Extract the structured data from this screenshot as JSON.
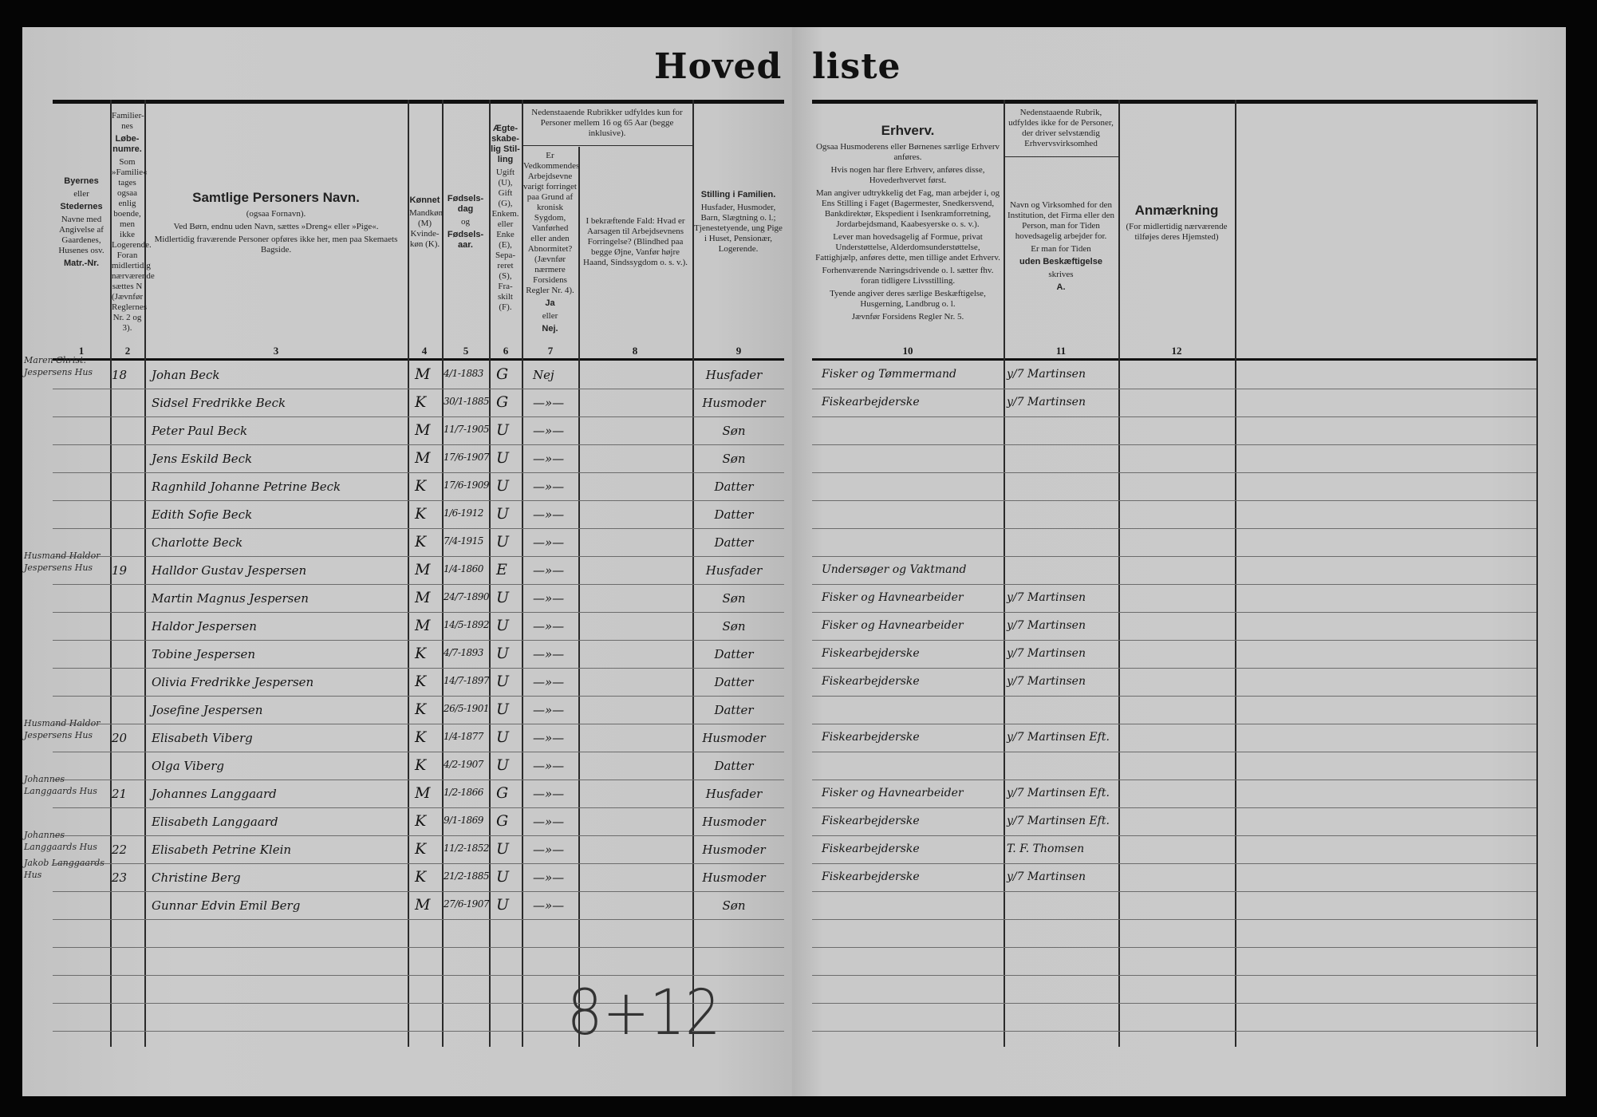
{
  "title": {
    "part1": "Hoved",
    "part2": "liste"
  },
  "headers": {
    "c1": [
      "Byernes",
      "eller",
      "Stedernes",
      "Navne med Angivelse af Gaardenes, Husenes osv.",
      "Matr.-Nr."
    ],
    "c2": [
      "Familier-nes",
      "Løbe-numre.",
      "Som »Familie« tages ogsaa enlig boende, men ikke Logerende. Foran midlertidig nærværende sættes N (Jævnfør Reglernes Nr. 2 og 3)."
    ],
    "c3": [
      "Samtlige Personers Navn.",
      "(ogsaa Fornavn).",
      "Ved Børn, endnu uden Navn, sættes »Dreng« eller »Pige«.",
      "Midlertidig fraværende Personer opføres ikke her, men paa Skemaets Bagside."
    ],
    "c4": [
      "Kønnet",
      "Mandkøn (M) Kvinde-køn (K)."
    ],
    "c5": [
      "Fødsels-dag",
      "og",
      "Fødsels-aar."
    ],
    "c6": [
      "Ægte-skabe-lig Stil-ling",
      "Ugift (U), Gift (G), Enkem. eller Enke (E), Sepa-reret (S), Fra-skilt (F)."
    ],
    "group78": "Nedenstaaende Rubrikker udfyldes kun for Personer mellem 16 og 65 Aar (begge inklusive).",
    "c7": [
      "Er Vedkommendes Arbejdsevne varigt forringet paa Grund af kronisk Sygdom, Vanførhed eller anden Abnormitet? (Jævnfør nærmere Forsidens Regler Nr. 4).",
      "Ja",
      "eller",
      "Nej."
    ],
    "c8": [
      "I bekræftende Fald: Hvad er Aarsagen til Arbejdsevnens Forringelse? (Blindhed paa begge Øjne, Vanfør højre Haand, Sindssygdom o. s. v.)."
    ],
    "c9": [
      "Stilling i Familien.",
      "Husfader, Husmoder, Barn, Slægtning o. l.; Tjenestetyende, ung Pige i Huset, Pensionær, Logerende."
    ],
    "c10": [
      "Erhverv.",
      "Ogsaa Husmoderens eller Børnenes særlige Erhverv anføres.",
      "Hvis nogen har flere Erhverv, anføres disse, Hovederhvervet først.",
      "Man angiver udtrykkelig det Fag, man arbejder i, og Ens Stilling i Faget (Bagermester, Snedkersvend, Bankdirektør, Ekspedient i Isenkramforretning, Jordarbejdsmand, Kaabesyerske o. s. v.).",
      "Lever man hovedsagelig af Formue, privat Understøttelse, Alderdomsunderstøttelse, Fattighjælp, anføres dette, men tillige andet Erhverv.",
      "Forhenværende Næringsdrivende o. l. sætter fhv. foran tidligere Livsstilling.",
      "Tyende angiver deres særlige Beskæftigelse, Husgerning, Landbrug o. l.",
      "Jævnfør Forsidens Regler Nr. 5."
    ],
    "group11": "Nedenstaaende Rubrik, udfyldes ikke for de Personer, der driver selvstændig Erhvervsvirksomhed",
    "c11": [
      "Navn og Virksomhed for den Institution, det Firma eller den Person, man for Tiden hovedsagelig arbejder for.",
      "Er man for Tiden",
      "uden Beskæftigelse",
      "skrives",
      "A."
    ],
    "c12": [
      "Anmærkning",
      "(For midlertidig nærværende tilføjes deres Hjemsted)"
    ]
  },
  "column_numbers": [
    "1",
    "2",
    "3",
    "4",
    "5",
    "6",
    "7",
    "8",
    "9",
    "10",
    "11",
    "12"
  ],
  "margin_notes": [
    {
      "row": 0,
      "text": "Maren Christ. Jespersens Hus"
    },
    {
      "row": 7,
      "text": "Husmand Haldor Jespersens Hus"
    },
    {
      "row": 13,
      "text": "Husmand Haldor Jespersens Hus"
    },
    {
      "row": 15,
      "text": "Johannes Langgaards Hus"
    },
    {
      "row": 17,
      "text": "Johannes Langgaards Hus"
    },
    {
      "row": 18,
      "text": "Jakob Langgaards Hus"
    }
  ],
  "rows": [
    {
      "fam": "18",
      "name": "Johan Beck",
      "sex": "M",
      "born": "4/1-1883",
      "civil": "G",
      "c7": "Nej",
      "role": "Husfader",
      "occupation": "Fisker og Tømmermand",
      "employer": "y/7 Martinsen"
    },
    {
      "fam": "",
      "name": "Sidsel Fredrikke Beck",
      "sex": "K",
      "born": "30/1-1885",
      "civil": "G",
      "c7": "—»—",
      "role": "Husmoder",
      "occupation": "Fiskearbejderske",
      "employer": "y/7 Martinsen"
    },
    {
      "fam": "",
      "name": "Peter Paul Beck",
      "sex": "M",
      "born": "11/7-1905",
      "civil": "U",
      "c7": "—»—",
      "role": "Søn",
      "occupation": "",
      "employer": ""
    },
    {
      "fam": "",
      "name": "Jens Eskild Beck",
      "sex": "M",
      "born": "17/6-1907",
      "civil": "U",
      "c7": "—»—",
      "role": "Søn",
      "occupation": "",
      "employer": ""
    },
    {
      "fam": "",
      "name": "Ragnhild Johanne Petrine Beck",
      "sex": "K",
      "born": "17/6-1909",
      "civil": "U",
      "c7": "—»—",
      "role": "Datter",
      "occupation": "",
      "employer": ""
    },
    {
      "fam": "",
      "name": "Edith Sofie Beck",
      "sex": "K",
      "born": "1/6-1912",
      "civil": "U",
      "c7": "—»—",
      "role": "Datter",
      "occupation": "",
      "employer": ""
    },
    {
      "fam": "",
      "name": "Charlotte Beck",
      "sex": "K",
      "born": "7/4-1915",
      "civil": "U",
      "c7": "—»—",
      "role": "Datter",
      "occupation": "",
      "employer": ""
    },
    {
      "fam": "19",
      "name": "Halldor Gustav Jespersen",
      "sex": "M",
      "born": "1/4-1860",
      "civil": "E",
      "c7": "—»—",
      "role": "Husfader",
      "occupation": "Undersøger og Vaktmand",
      "employer": ""
    },
    {
      "fam": "",
      "name": "Martin Magnus Jespersen",
      "sex": "M",
      "born": "24/7-1890",
      "civil": "U",
      "c7": "—»—",
      "role": "Søn",
      "occupation": "Fisker og Havnearbeider",
      "employer": "y/7 Martinsen"
    },
    {
      "fam": "",
      "name": "Haldor Jespersen",
      "sex": "M",
      "born": "14/5-1892",
      "civil": "U",
      "c7": "—»—",
      "role": "Søn",
      "occupation": "Fisker og Havnearbeider",
      "employer": "y/7 Martinsen"
    },
    {
      "fam": "",
      "name": "Tobine Jespersen",
      "sex": "K",
      "born": "4/7-1893",
      "civil": "U",
      "c7": "—»—",
      "role": "Datter",
      "occupation": "Fiskearbejderske",
      "employer": "y/7 Martinsen"
    },
    {
      "fam": "",
      "name": "Olivia Fredrikke Jespersen",
      "sex": "K",
      "born": "14/7-1897",
      "civil": "U",
      "c7": "—»—",
      "role": "Datter",
      "occupation": "Fiskearbejderske",
      "employer": "y/7 Martinsen"
    },
    {
      "fam": "",
      "name": "Josefine Jespersen",
      "sex": "K",
      "born": "26/5-1901",
      "civil": "U",
      "c7": "—»—",
      "role": "Datter",
      "occupation": "",
      "employer": ""
    },
    {
      "fam": "20",
      "name": "Elisabeth Viberg",
      "sex": "K",
      "born": "1/4-1877",
      "civil": "U",
      "c7": "—»—",
      "role": "Husmoder",
      "occupation": "Fiskearbejderske",
      "employer": "y/7 Martinsen Eft."
    },
    {
      "fam": "",
      "name": "Olga Viberg",
      "sex": "K",
      "born": "4/2-1907",
      "civil": "U",
      "c7": "—»—",
      "role": "Datter",
      "occupation": "",
      "employer": ""
    },
    {
      "fam": "21",
      "name": "Johannes Langgaard",
      "sex": "M",
      "born": "1/2-1866",
      "civil": "G",
      "c7": "—»—",
      "role": "Husfader",
      "occupation": "Fisker og Havnearbeider",
      "employer": "y/7 Martinsen Eft."
    },
    {
      "fam": "",
      "name": "Elisabeth Langgaard",
      "sex": "K",
      "born": "9/1-1869",
      "civil": "G",
      "c7": "—»—",
      "role": "Husmoder",
      "occupation": "Fiskearbejderske",
      "employer": "y/7 Martinsen Eft."
    },
    {
      "fam": "22",
      "name": "Elisabeth Petrine Klein",
      "sex": "K",
      "born": "11/2-1852",
      "civil": "U",
      "c7": "—»—",
      "role": "Husmoder",
      "occupation": "Fiskearbejderske",
      "employer": "T. F. Thomsen"
    },
    {
      "fam": "23",
      "name": "Christine Berg",
      "sex": "K",
      "born": "21/2-1885",
      "civil": "U",
      "c7": "—»—",
      "role": "Husmoder",
      "occupation": "Fiskearbejderske",
      "employer": "y/7 Martinsen"
    },
    {
      "fam": "",
      "name": "Gunnar Edvin Emil Berg",
      "sex": "M",
      "born": "27/6-1907",
      "civil": "U",
      "c7": "—»—",
      "role": "Søn",
      "occupation": "",
      "employer": ""
    }
  ],
  "tally": "8+12"
}
